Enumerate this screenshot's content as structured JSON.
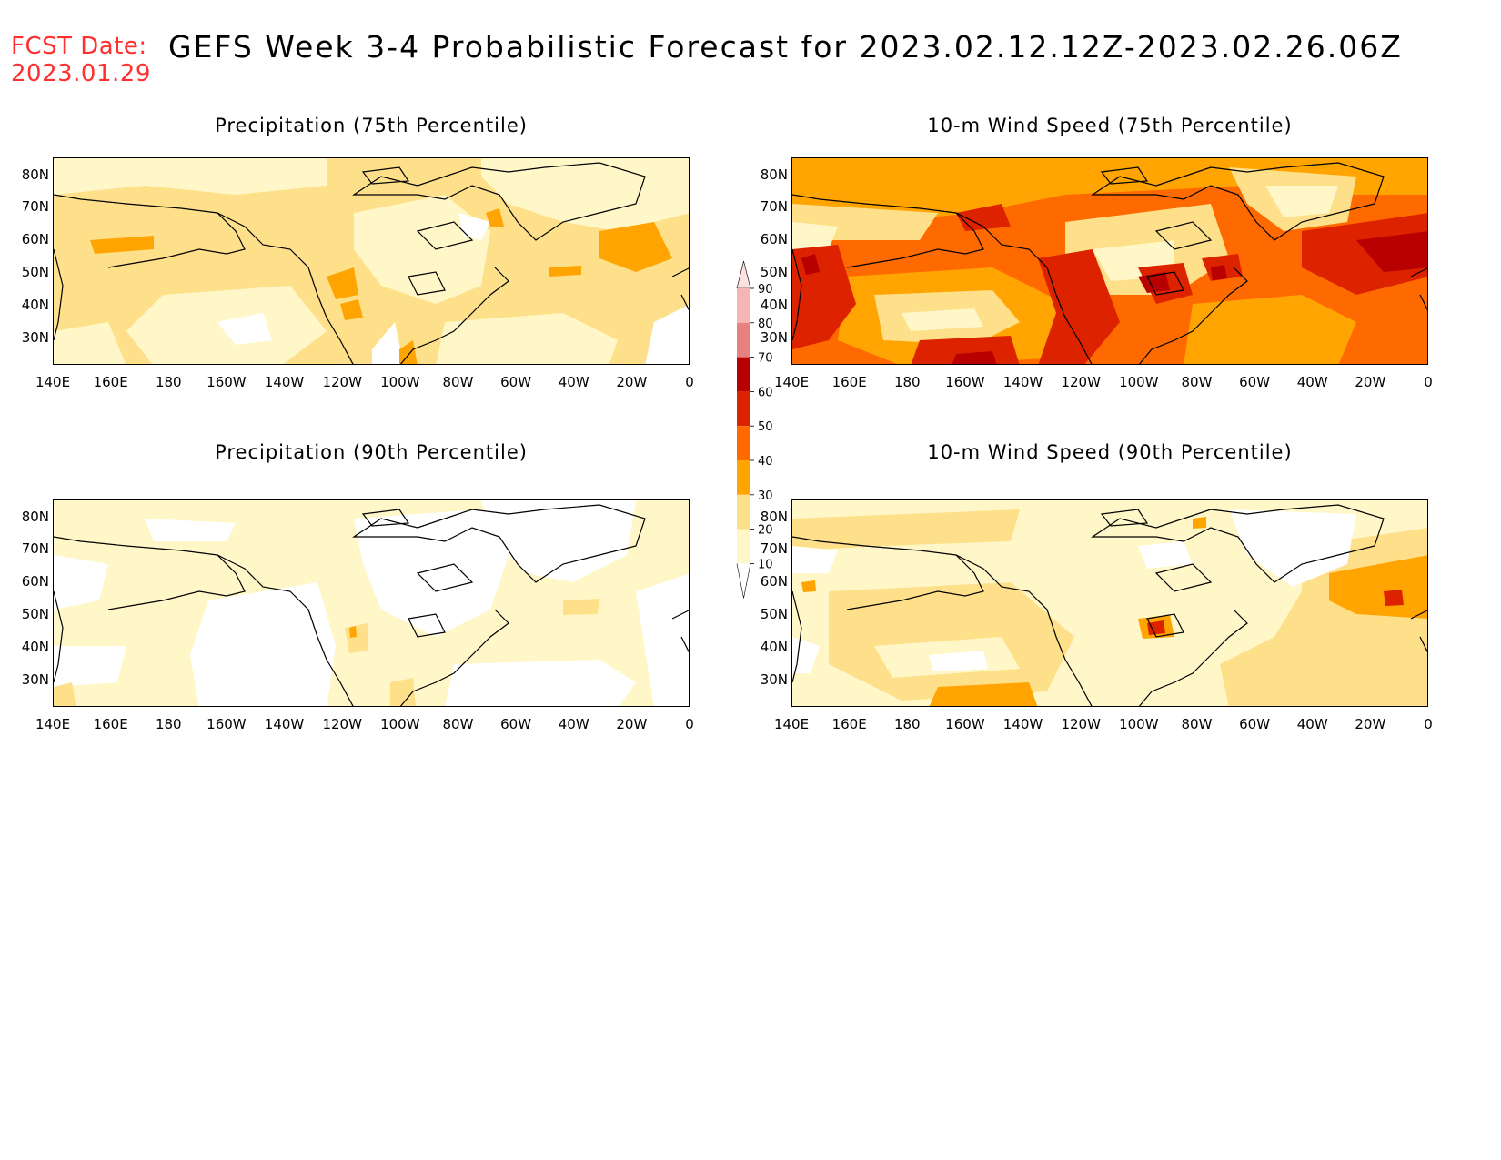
{
  "header": {
    "fcst_label": "FCST Date:",
    "fcst_date": "2023.01.29",
    "title": "GEFS Week 3-4 Probabilistic Forecast for 2023.02.12.12Z-2023.02.26.06Z"
  },
  "panels": [
    {
      "title": "Precipitation (75th Percentile)"
    },
    {
      "title": "10-m Wind Speed (75th Percentile)"
    },
    {
      "title": "Precipitation (90th Percentile)"
    },
    {
      "title": "10-m Wind Speed (90th Percentile)"
    }
  ],
  "axes": {
    "lat_labels": [
      "80N",
      "70N",
      "60N",
      "50N",
      "40N",
      "30N"
    ],
    "lon_labels": [
      "140E",
      "160E",
      "180",
      "160W",
      "140W",
      "120W",
      "100W",
      "80W",
      "60W",
      "40W",
      "20W",
      "0"
    ]
  },
  "colorbar": {
    "levels": [
      "90",
      "80",
      "70",
      "60",
      "50",
      "40",
      "30",
      "20",
      "10"
    ],
    "colors": [
      "#f7b4b4",
      "#e88080",
      "#b80000",
      "#dd2200",
      "#ff6a00",
      "#ffa400",
      "#ffe08a",
      "#fff7c8"
    ]
  },
  "fill_colors": {
    "white": "#ffffff",
    "light": "#fff7c8",
    "yellow": "#ffe08a",
    "orange": "#ffa400",
    "dark_orange": "#ff6a00",
    "red": "#dd2200",
    "dark_red": "#b80000"
  }
}
